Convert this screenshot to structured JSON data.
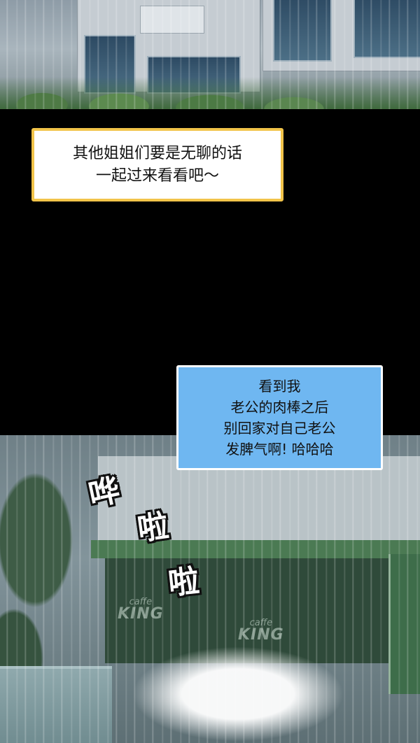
{
  "bubbles": {
    "top": {
      "lines": [
        "其他姐姐们要是无聊的话",
        "一起过来看看吧～"
      ]
    },
    "bottom": {
      "lines": [
        "看到我",
        "老公的肉棒之后",
        "别回家对自己老公",
        "发脾气啊! 哈哈哈"
      ]
    }
  },
  "sfx": {
    "char1": "哗",
    "char2": "啦",
    "char3": "啦"
  },
  "scene": {
    "cafe_logo_1": {
      "small": "caffe",
      "big": "KING"
    },
    "cafe_logo_2": {
      "small": "caffe",
      "big": "KING"
    }
  },
  "colors": {
    "top_bubble_border": "#f2c44a",
    "bottom_bubble_fill": "#6fb7f1",
    "background": "#000000"
  }
}
